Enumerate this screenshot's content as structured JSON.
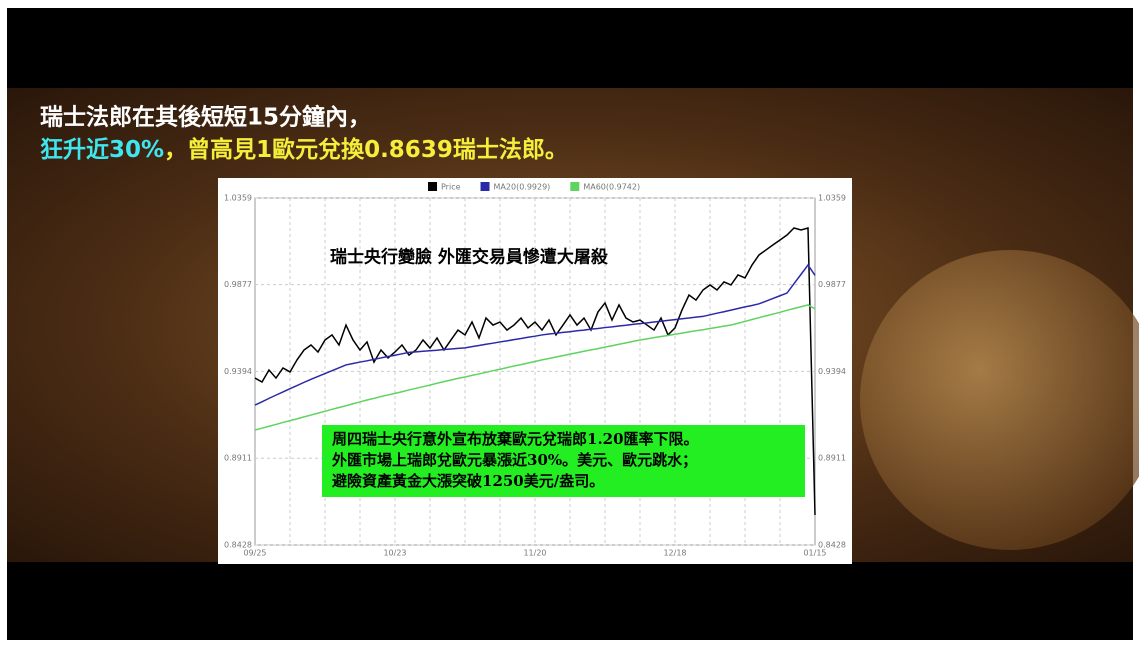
{
  "captions": {
    "line1": "瑞士法郎在其後短短15分鐘內，",
    "line2_highlight": "狂升近30%",
    "line2_rest": "，曾高見1歐元兌換0.8639瑞士法郎。"
  },
  "chart_data": {
    "type": "line",
    "annotations": [
      "瑞士央行變臉 外匯交易員慘遭大屠殺",
      "周四瑞士央行意外宣布放棄歐元兌瑞郎1.20匯率下限。",
      "外匯市場上瑞郎兌歐元暴漲近30%。美元、歐元跳水；",
      "避險資產黃金大漲突破1250美元/盎司。"
    ],
    "categories": [
      "09/25",
      null,
      null,
      null,
      null,
      null,
      null,
      null,
      null,
      null,
      null,
      null,
      null,
      null,
      null,
      null,
      null,
      null,
      null,
      null,
      "10/23",
      null,
      null,
      null,
      null,
      null,
      null,
      null,
      null,
      null,
      null,
      null,
      null,
      null,
      null,
      null,
      null,
      null,
      null,
      null,
      "11/20",
      null,
      null,
      null,
      null,
      null,
      null,
      null,
      null,
      null,
      null,
      null,
      null,
      null,
      null,
      null,
      null,
      null,
      null,
      null,
      "12/18",
      null,
      null,
      null,
      null,
      null,
      null,
      null,
      null,
      null,
      null,
      null,
      null,
      null,
      null,
      null,
      null,
      null,
      null,
      null,
      "01/15"
    ],
    "series": [
      {
        "name": "Price",
        "color": "#000000",
        "values": [
          0.9357,
          0.9335,
          0.9402,
          0.9357,
          0.9413,
          0.9391,
          0.9458,
          0.9513,
          0.9541,
          0.9502,
          0.9569,
          0.9597,
          0.9541,
          0.9652,
          0.9569,
          0.9513,
          0.9558,
          0.9446,
          0.9513,
          0.9469,
          0.9502,
          0.9541,
          0.9485,
          0.9513,
          0.9569,
          0.9524,
          0.958,
          0.9513,
          0.9569,
          0.9624,
          0.9597,
          0.9669,
          0.958,
          0.9691,
          0.9652,
          0.9669,
          0.9624,
          0.9652,
          0.9691,
          0.9636,
          0.9669,
          0.9624,
          0.968,
          0.9597,
          0.9652,
          0.9708,
          0.9652,
          0.9691,
          0.9624,
          0.9725,
          0.9775,
          0.968,
          0.9764,
          0.9691,
          0.9669,
          0.968,
          0.9652,
          0.9624,
          0.9691,
          0.9597,
          0.9636,
          0.9736,
          0.9819,
          0.9791,
          0.9847,
          0.9875,
          0.9847,
          0.9892,
          0.9875,
          0.9931,
          0.9914,
          0.9986,
          1.0042,
          1.007,
          1.0098,
          1.0125,
          1.0153,
          1.0192,
          1.0181,
          1.0192,
          0.8595
        ]
      },
      {
        "name": "MA20(0.9929)",
        "color": "#2a2aa8",
        "values": [
          0.9207,
          0.9225,
          0.9244,
          0.9262,
          0.928,
          0.9298,
          0.9315,
          0.9333,
          0.935,
          0.9366,
          0.9382,
          0.9398,
          0.9414,
          0.943,
          0.9438,
          0.9446,
          0.9453,
          0.9461,
          0.9469,
          0.9477,
          0.9484,
          0.9492,
          0.95,
          0.9503,
          0.9506,
          0.9509,
          0.9512,
          0.9516,
          0.9519,
          0.9522,
          0.9525,
          0.9532,
          0.9538,
          0.9545,
          0.9551,
          0.9558,
          0.9564,
          0.9571,
          0.9577,
          0.9584,
          0.959,
          0.9597,
          0.9602,
          0.9606,
          0.9611,
          0.9615,
          0.962,
          0.9624,
          0.9629,
          0.9633,
          0.9638,
          0.9642,
          0.9647,
          0.9651,
          0.9656,
          0.966,
          0.9664,
          0.9669,
          0.9673,
          0.9678,
          0.9682,
          0.9687,
          0.9691,
          0.9696,
          0.97,
          0.9709,
          0.9718,
          0.9726,
          0.9735,
          0.9744,
          0.9753,
          0.9761,
          0.977,
          0.9785,
          0.98,
          0.9815,
          0.983,
          0.9882,
          0.9934,
          0.9986,
          0.9929
        ]
      },
      {
        "name": "MA60(0.9742)",
        "color": "#5fd35f",
        "values": [
          0.9068,
          0.9078,
          0.9089,
          0.9099,
          0.911,
          0.912,
          0.913,
          0.9141,
          0.9151,
          0.9162,
          0.9172,
          0.9183,
          0.9193,
          0.9203,
          0.9214,
          0.9224,
          0.9235,
          0.9244,
          0.9254,
          0.9263,
          0.9272,
          0.9281,
          0.9291,
          0.93,
          0.9309,
          0.9318,
          0.9328,
          0.9337,
          0.9346,
          0.9355,
          0.9363,
          0.9372,
          0.938,
          0.9389,
          0.9398,
          0.9406,
          0.9415,
          0.9424,
          0.9432,
          0.9441,
          0.9449,
          0.9458,
          0.9466,
          0.9474,
          0.9482,
          0.949,
          0.9498,
          0.9506,
          0.9514,
          0.9521,
          0.9529,
          0.9537,
          0.9545,
          0.9553,
          0.9561,
          0.9569,
          0.9575,
          0.9582,
          0.9588,
          0.9594,
          0.9601,
          0.9607,
          0.9614,
          0.962,
          0.9626,
          0.9633,
          0.9639,
          0.9646,
          0.9652,
          0.9662,
          0.9672,
          0.9683,
          0.9693,
          0.9703,
          0.9713,
          0.9723,
          0.9734,
          0.9744,
          0.9754,
          0.9764,
          0.9742
        ]
      }
    ],
    "ylim": [
      0.8428,
      1.0359
    ],
    "yticks": [
      0.8428,
      0.8911,
      0.9394,
      0.9877,
      1.0359
    ],
    "grid": true
  }
}
